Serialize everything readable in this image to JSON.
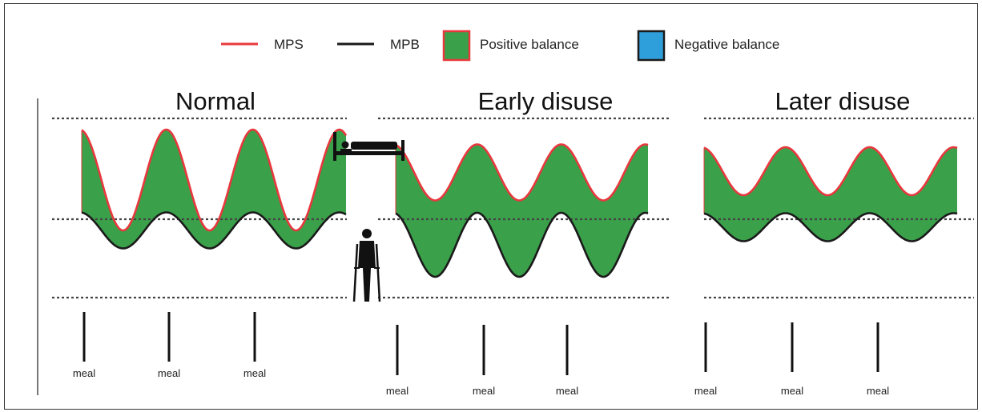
{
  "legend": [
    {
      "label": "MPS",
      "kind": "line",
      "color": "#e8383d"
    },
    {
      "label": "MPB",
      "kind": "line",
      "color": "#1a1a1a"
    },
    {
      "label": "Positive balance",
      "kind": "swatch",
      "fill": "#3aa04a",
      "stroke": "#e8383d"
    },
    {
      "label": "Negative balance",
      "kind": "swatch",
      "fill": "#2f9fdc",
      "stroke": "#1a1a1a"
    }
  ],
  "panels": [
    {
      "title": "Normal",
      "meals": [
        "meal",
        "meal",
        "meal"
      ],
      "mps_peak": "max",
      "mpb_amplitude": "large"
    },
    {
      "title": "Early disuse",
      "meals": [
        "meal",
        "meal",
        "meal"
      ],
      "mps_peak": "reduced",
      "mpb_amplitude": "large"
    },
    {
      "title": "Later disuse",
      "meals": [
        "meal",
        "meal",
        "meal"
      ],
      "mps_peak": "further reduced",
      "mpb_amplitude": "small"
    }
  ],
  "icons": [
    "bed-icon",
    "person-with-crutches-icon"
  ],
  "colors": {
    "mps": "#e8383d",
    "mpb": "#1a1a1a",
    "positive": "#3aa04a",
    "negative": "#2f9fdc",
    "dashed": "#444444"
  }
}
